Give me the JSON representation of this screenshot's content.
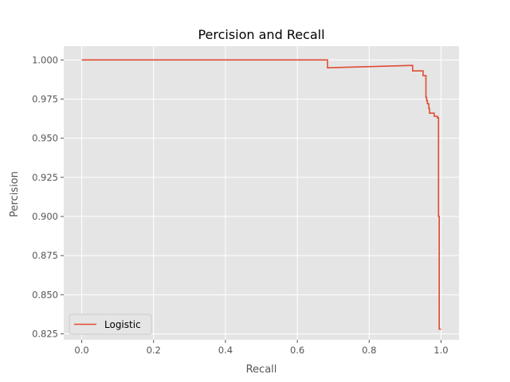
{
  "chart_data": {
    "type": "line",
    "title": "Percision and Recall",
    "xlabel": "Recall",
    "ylabel": "Percision",
    "xlim": [
      -0.05,
      1.05
    ],
    "ylim": [
      0.8212,
      1.0088
    ],
    "xticks": [
      0.0,
      0.2,
      0.4,
      0.6,
      0.8,
      1.0
    ],
    "xtick_labels": [
      "0.0",
      "0.2",
      "0.4",
      "0.6",
      "0.8",
      "1.0"
    ],
    "yticks": [
      0.825,
      0.85,
      0.875,
      0.9,
      0.925,
      0.95,
      0.975,
      1.0
    ],
    "ytick_labels": [
      "0.825",
      "0.850",
      "0.875",
      "0.900",
      "0.925",
      "0.950",
      "0.975",
      "1.000"
    ],
    "grid": true,
    "legend_position": "lower-left",
    "background": "#e5e5e5",
    "series": [
      {
        "name": "Logistic",
        "color": "#e24a33",
        "x": [
          0.0,
          0.684,
          0.684,
          0.921,
          0.921,
          0.95,
          0.95,
          0.958,
          0.958,
          0.96,
          0.96,
          0.962,
          0.962,
          0.966,
          0.966,
          0.968,
          0.968,
          0.981,
          0.981,
          0.99,
          0.99,
          0.993,
          0.993,
          0.995,
          0.995,
          1.0
        ],
        "y": [
          1.0,
          1.0,
          0.995,
          0.9965,
          0.993,
          0.993,
          0.99,
          0.99,
          0.976,
          0.976,
          0.974,
          0.974,
          0.972,
          0.972,
          0.969,
          0.969,
          0.966,
          0.966,
          0.964,
          0.964,
          0.963,
          0.963,
          0.9,
          0.9,
          0.828,
          0.828
        ]
      }
    ]
  }
}
